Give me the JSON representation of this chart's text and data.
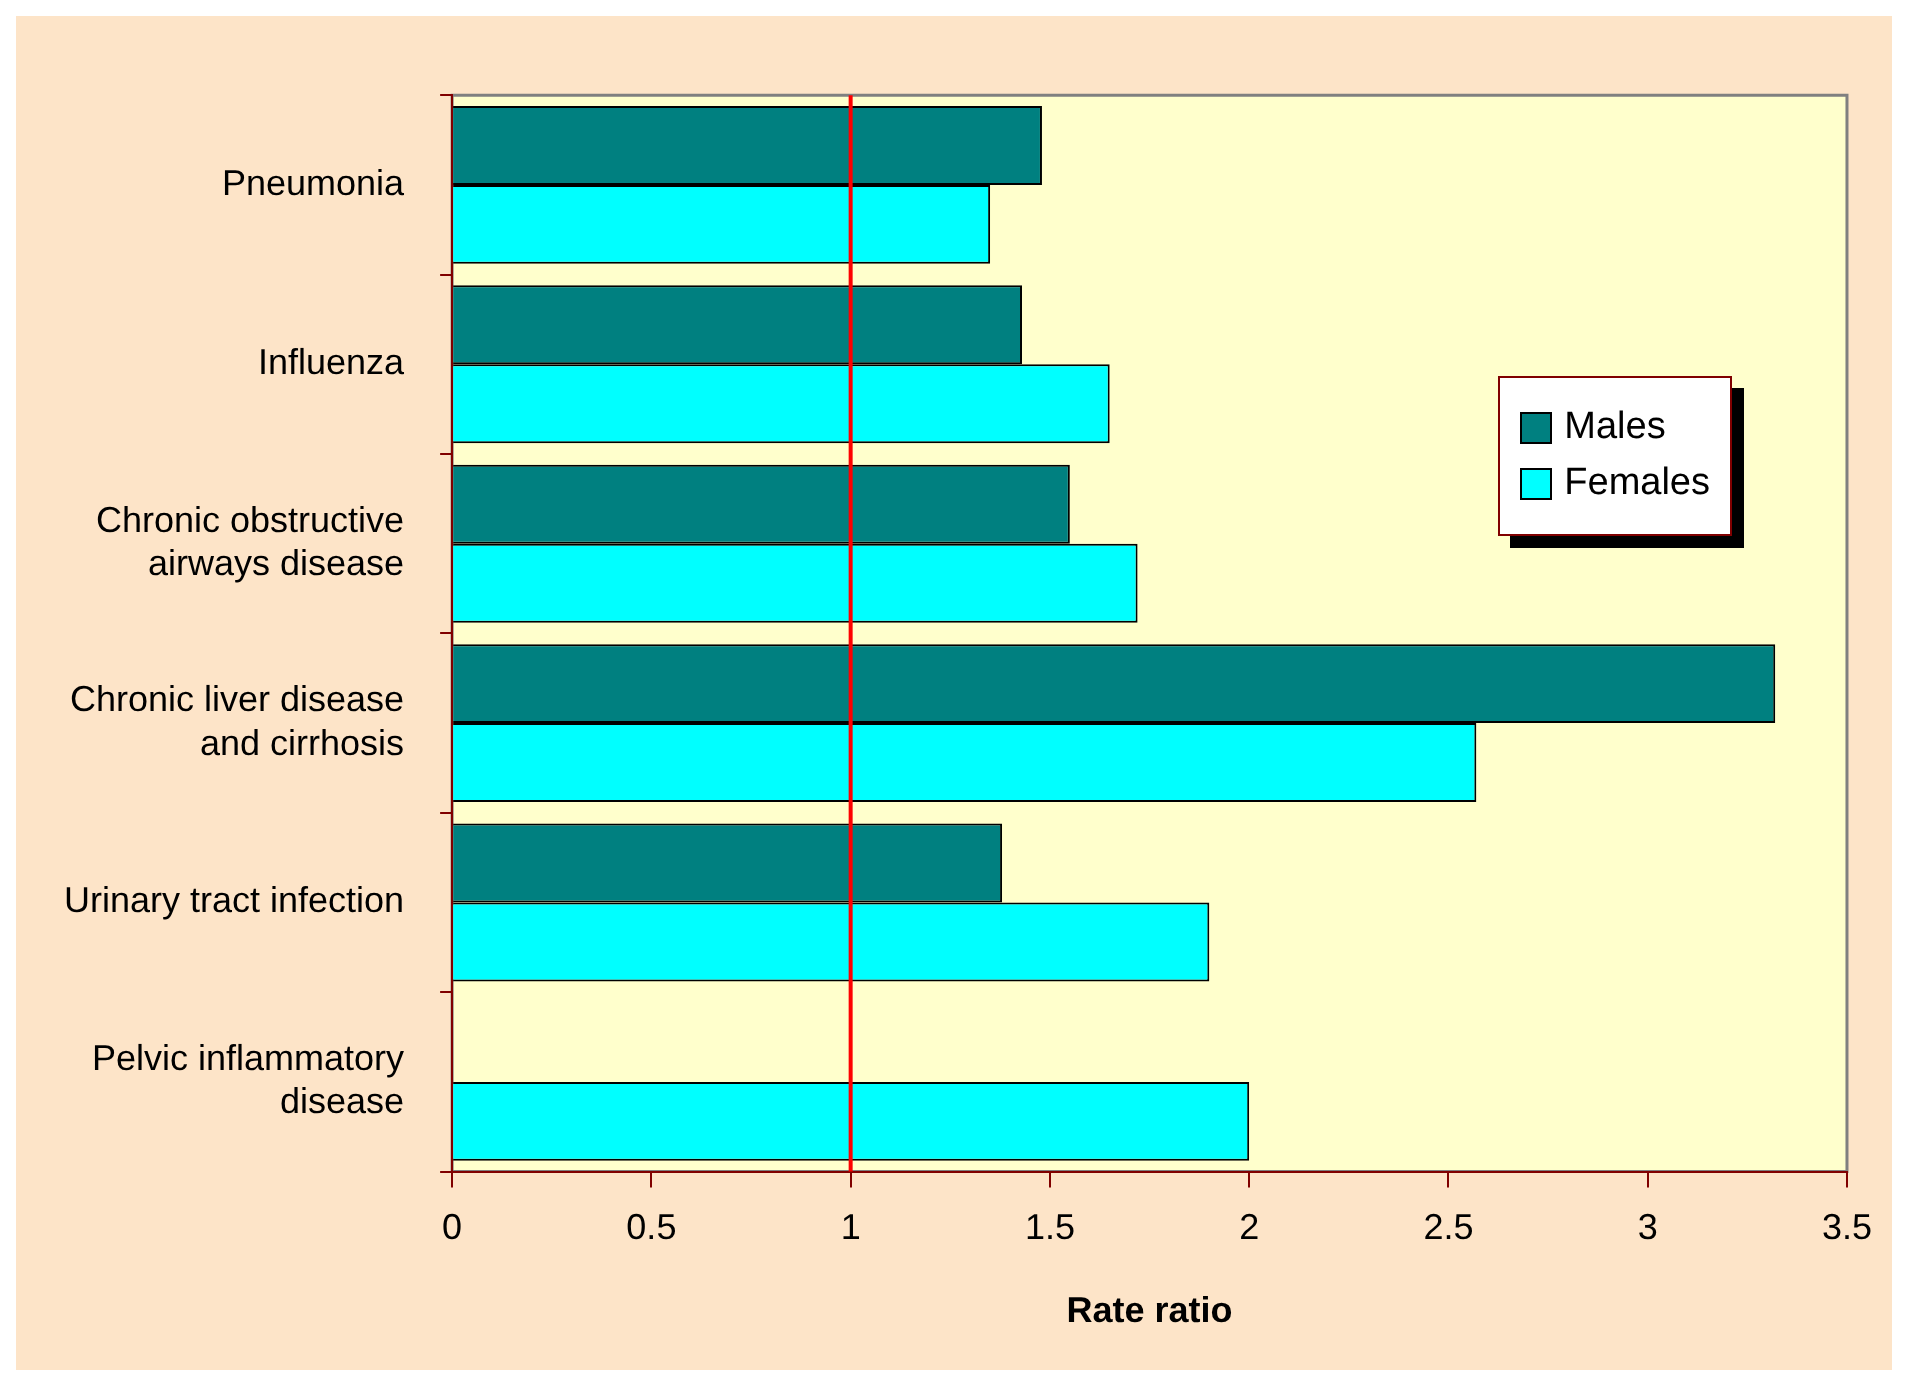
{
  "chart_data": {
    "type": "bar",
    "orientation": "horizontal",
    "xlabel": "Rate ratio",
    "categories": [
      "Pneumonia",
      "Influenza",
      "Chronic obstructive airways disease",
      "Chronic liver disease and cirrhosis",
      "Urinary tract infection",
      "Pelvic inflammatory disease"
    ],
    "series": [
      {
        "name": "Males",
        "color": "#008080",
        "values": [
          1.48,
          1.43,
          1.55,
          3.32,
          1.38,
          null
        ]
      },
      {
        "name": "Females",
        "color": "#00ffff",
        "values": [
          1.35,
          1.65,
          1.72,
          2.57,
          1.9,
          2.0
        ]
      }
    ],
    "xlim": [
      0,
      3.5
    ],
    "xticks": [
      0,
      0.5,
      1,
      1.5,
      2,
      2.5,
      3,
      3.5
    ],
    "ref_lines": [
      {
        "axis": "x",
        "value": 1,
        "color": "#ff0000"
      }
    ],
    "grid": false,
    "legend": "right"
  }
}
